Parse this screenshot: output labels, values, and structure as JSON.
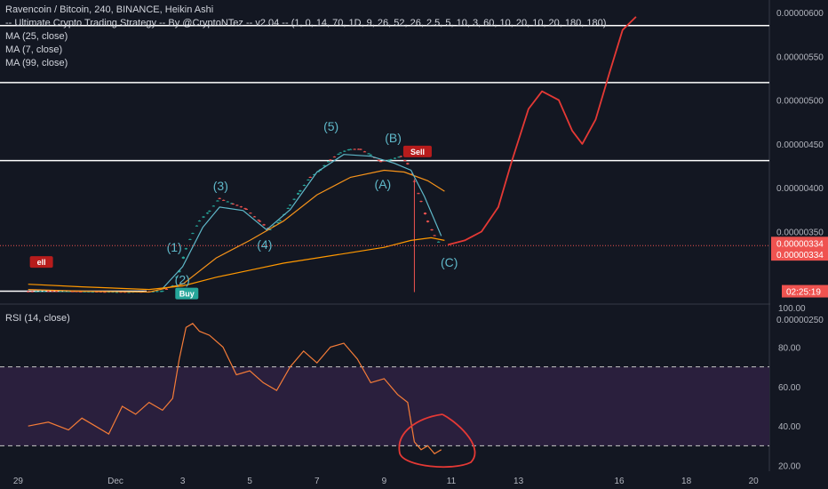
{
  "header": {
    "symbol_line": "Ravencoin / Bitcoin, 240, BINANCE, Heikin Ashi",
    "strategy_line": "-- Ultimate Crypto Trading Strategy -- By @CryptoNTez -- v2.04 -- (1, 0, 14, 70, 1D, 9, 26, 52, 26, 2.5, 5, 10, 3, 60, 10, 20, 10, 20, 180, 180)",
    "ma1": "MA (25, close)",
    "ma2": "MA (7, close)",
    "ma3": "MA (99, close)"
  },
  "rsi": {
    "label": "RSI (14, close)"
  },
  "colors": {
    "bull": "#26a69a",
    "bear": "#ef5350",
    "ma25": "#f7931a",
    "ma7": "#5fb8c9",
    "ma99": "#ff9800",
    "rsi": "#f57c38",
    "drawing": "#e53935",
    "rsi_band": "#2a1f3d",
    "level_line": "#ffffff",
    "price_tag": "#ef5350"
  },
  "chart_data": [
    {
      "type": "candlestick",
      "title": "Ravencoin / Bitcoin, 240, BINANCE, Heikin Ashi",
      "x_ticks": [
        "29",
        "Dec",
        "3",
        "5",
        "7",
        "9",
        "11",
        "13",
        "16",
        "18",
        "20"
      ],
      "y_ticks": [
        "0.00000600",
        "0.00000550",
        "0.00000500",
        "0.00000450",
        "0.00000400",
        "0.00000350",
        "0.00000250"
      ],
      "ylim": [
        2.492e-06,
        6e-06
      ],
      "last_price_labels": [
        "0.00000334",
        "0.00000334"
      ],
      "countdown": "02:25:19",
      "horizontal_levels": [
        5.85e-06,
        5.2e-06,
        4.31e-06,
        2.82e-06
      ],
      "wave_labels": [
        {
          "text": "(1)",
          "x": 2.75,
          "y": 3.27e-06
        },
        {
          "text": "(2)",
          "x": 2.99,
          "y": 2.9e-06
        },
        {
          "text": "(3)",
          "x": 4.13,
          "y": 3.97e-06
        },
        {
          "text": "(4)",
          "x": 5.44,
          "y": 3.3e-06
        },
        {
          "text": "(5)",
          "x": 7.42,
          "y": 4.65e-06
        },
        {
          "text": "(A)",
          "x": 8.96,
          "y": 3.99e-06
        },
        {
          "text": "(B)",
          "x": 9.27,
          "y": 4.52e-06
        },
        {
          "text": "(C)",
          "x": 10.94,
          "y": 3.1e-06
        }
      ],
      "signals": [
        {
          "text": "Buy",
          "x": 2.78,
          "y": 2.86e-06,
          "color": "#26a69a"
        },
        {
          "text": "Sell",
          "x": 9.57,
          "y": 4.48e-06,
          "color": "#b71c1c"
        },
        {
          "text": "ell",
          "x": -1.55,
          "y": 3.22e-06,
          "color": "#b71c1c"
        }
      ]
    },
    {
      "type": "line",
      "title": "RSI (14, close)",
      "ylim": [
        20,
        100
      ],
      "y_ticks": [
        "100.00",
        "80.00",
        "60.00",
        "40.00",
        "20.00"
      ],
      "bands": [
        70,
        30
      ],
      "series": [
        {
          "x": [
            -1.6,
            -1.0,
            -0.4,
            0.0,
            0.4,
            0.8,
            1.2,
            1.6,
            2.0,
            2.4,
            2.7,
            2.9,
            3.1,
            3.3,
            3.5,
            3.8,
            4.2,
            4.6,
            5.0,
            5.4,
            5.8,
            6.2,
            6.6,
            7.0,
            7.4,
            7.8,
            8.2,
            8.6,
            9.0,
            9.4,
            9.7,
            9.9,
            10.1,
            10.3,
            10.5,
            10.7
          ],
          "values": [
            40,
            42,
            38,
            44,
            40,
            36,
            50,
            46,
            52,
            48,
            54,
            74,
            90,
            92,
            88,
            86,
            80,
            66,
            68,
            62,
            58,
            70,
            78,
            72,
            80,
            82,
            74,
            62,
            64,
            56,
            52,
            32,
            28,
            30,
            26,
            28
          ]
        }
      ]
    }
  ]
}
